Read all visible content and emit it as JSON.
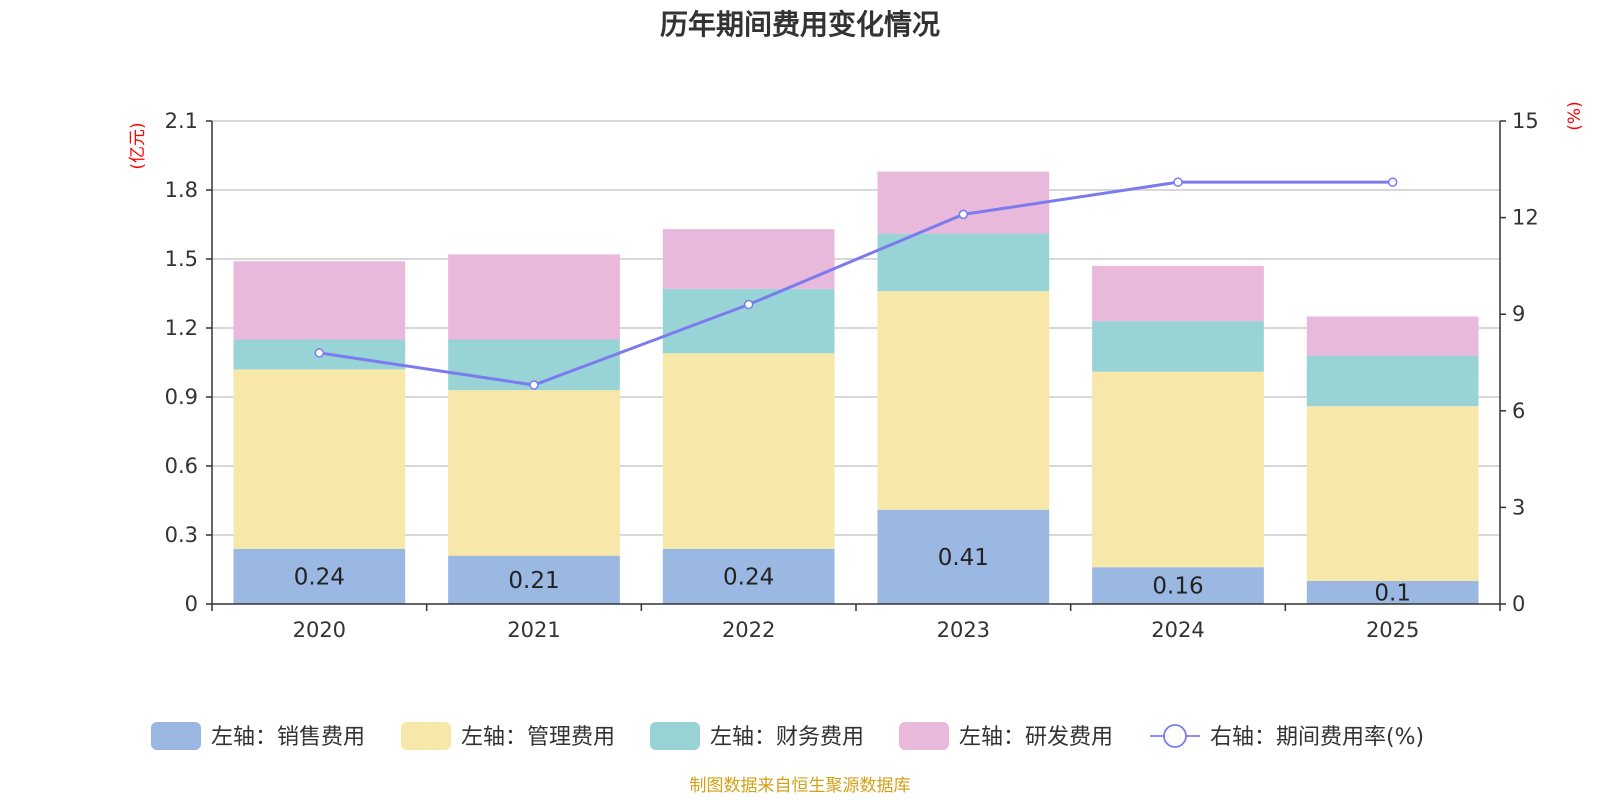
{
  "chart_data": {
    "type": "bar",
    "stacked": true,
    "title": "历年期间费用变化情况",
    "categories": [
      "2020",
      "2021",
      "2022",
      "2023",
      "2024",
      "2025"
    ],
    "left_axis": {
      "unit": "(亿元)",
      "min": 0,
      "max": 2.1,
      "ticks": [
        "0",
        "0.3",
        "0.6",
        "0.9",
        "1.2",
        "1.5",
        "1.8",
        "2.1"
      ]
    },
    "right_axis": {
      "unit": "(%)",
      "min": 0,
      "max": 15,
      "ticks": [
        "0",
        "3",
        "6",
        "9",
        "12",
        "15"
      ]
    },
    "series": [
      {
        "name": "左轴：销售费用",
        "type": "bar",
        "axis": "left",
        "color": "#9bb8e3",
        "values": [
          0.24,
          0.21,
          0.24,
          0.41,
          0.16,
          0.1
        ],
        "labels": [
          "0.24",
          "0.21",
          "0.24",
          "0.41",
          "0.16",
          "0.1"
        ]
      },
      {
        "name": "左轴：管理费用",
        "type": "bar",
        "axis": "left",
        "color": "#f7e7a8",
        "values": [
          0.78,
          0.72,
          0.85,
          0.95,
          0.85,
          0.76
        ]
      },
      {
        "name": "左轴：财务费用",
        "type": "bar",
        "axis": "left",
        "color": "#98d4d6",
        "values": [
          0.13,
          0.22,
          0.28,
          0.25,
          0.22,
          0.22
        ]
      },
      {
        "name": "左轴：研发费用",
        "type": "bar",
        "axis": "left",
        "color": "#e8b9da",
        "values": [
          0.34,
          0.37,
          0.26,
          0.27,
          0.24,
          0.17
        ]
      },
      {
        "name": "右轴：期间费用率(%)",
        "type": "line",
        "axis": "right",
        "color": "#7b7bef",
        "values": [
          7.8,
          6.8,
          9.3,
          12.1,
          13.1,
          13.1
        ]
      }
    ],
    "grid": true,
    "legend_position": "bottom"
  },
  "source": "制图数据来自恒生聚源数据库"
}
